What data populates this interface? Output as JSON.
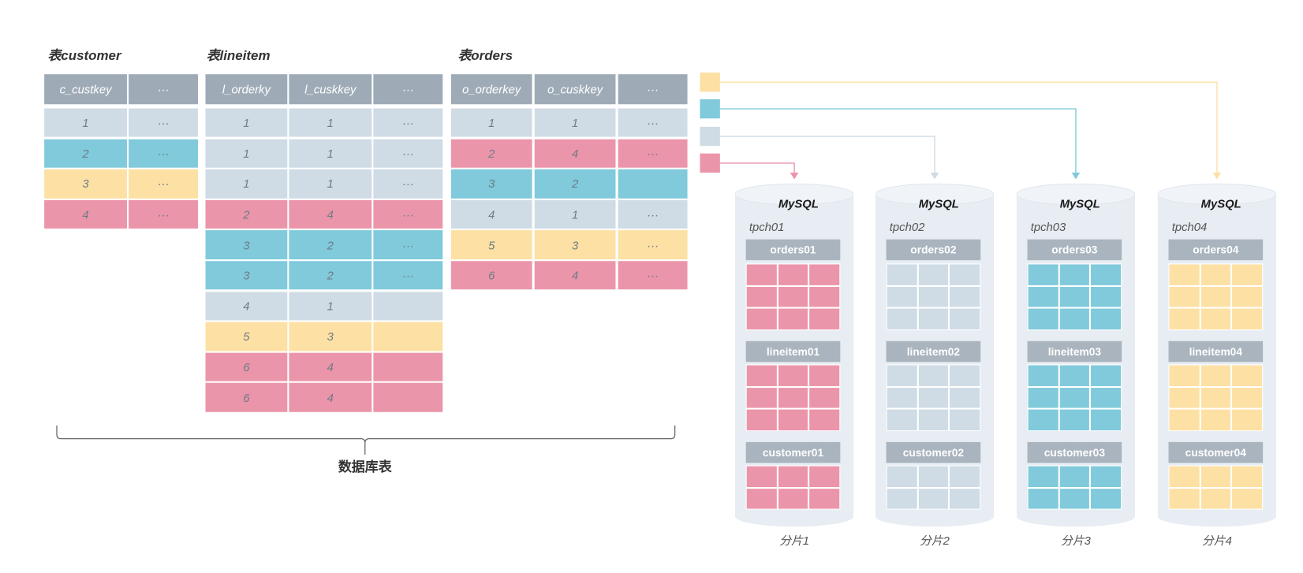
{
  "colors": {
    "table_header": "#9eabb7",
    "block_header": "#a9b4be",
    "cylinder": "#e7edf3",
    "cylinder_top": "#f0f4f8",
    "brace": "#666666"
  },
  "tables": [
    {
      "title": "表customer",
      "headers": [
        "c_custkey",
        "···"
      ],
      "rows": [
        {
          "color": "#cfdbe5",
          "cells": [
            "1",
            "···"
          ]
        },
        {
          "color": "#80cadb",
          "cells": [
            "2",
            "···"
          ]
        },
        {
          "color": "#fde0a4",
          "cells": [
            "3",
            "···"
          ]
        },
        {
          "color": "#eb95aa",
          "cells": [
            "4",
            "···"
          ]
        }
      ]
    },
    {
      "title": "表lineitem",
      "headers": [
        "l_orderky",
        "l_cuskkey",
        "···"
      ],
      "rows": [
        {
          "color": "#cfdbe5",
          "cells": [
            "1",
            "1",
            "···"
          ]
        },
        {
          "color": "#cfdbe5",
          "cells": [
            "1",
            "1",
            "···"
          ]
        },
        {
          "color": "#cfdbe5",
          "cells": [
            "1",
            "1",
            "···"
          ]
        },
        {
          "color": "#eb95aa",
          "cells": [
            "2",
            "4",
            "···"
          ]
        },
        {
          "color": "#80cadb",
          "cells": [
            "3",
            "2",
            "···"
          ]
        },
        {
          "color": "#80cadb",
          "cells": [
            "3",
            "2",
            "···"
          ]
        },
        {
          "color": "#cfdbe5",
          "cells": [
            "4",
            "1",
            ""
          ]
        },
        {
          "color": "#fde0a4",
          "cells": [
            "5",
            "3",
            ""
          ]
        },
        {
          "color": "#eb95aa",
          "cells": [
            "6",
            "4",
            ""
          ]
        },
        {
          "color": "#eb95aa",
          "cells": [
            "6",
            "4",
            ""
          ]
        }
      ]
    },
    {
      "title": "表orders",
      "headers": [
        "o_orderkey",
        "o_cuskkey",
        "···"
      ],
      "rows": [
        {
          "color": "#cfdbe5",
          "cells": [
            "1",
            "1",
            "···"
          ]
        },
        {
          "color": "#eb95aa",
          "cells": [
            "2",
            "4",
            "···"
          ]
        },
        {
          "color": "#80cadb",
          "cells": [
            "3",
            "2",
            ""
          ]
        },
        {
          "color": "#cfdbe5",
          "cells": [
            "4",
            "1",
            "···"
          ]
        },
        {
          "color": "#fde0a4",
          "cells": [
            "5",
            "3",
            "···"
          ]
        },
        {
          "color": "#eb95aa",
          "cells": [
            "6",
            "4",
            "···"
          ]
        }
      ]
    }
  ],
  "brace_label": "数据库表",
  "legend": [
    "#fde0a4",
    "#80cadb",
    "#cfdbe5",
    "#eb95aa"
  ],
  "shards": [
    {
      "color": "#eb95aa",
      "engine": "MySQL",
      "database": "tpch01",
      "tables": [
        "orders01",
        "lineitem01",
        "customer01"
      ],
      "label": "分片1"
    },
    {
      "color": "#cfdbe5",
      "engine": "MySQL",
      "database": "tpch02",
      "tables": [
        "orders02",
        "lineitem02",
        "customer02"
      ],
      "label": "分片2"
    },
    {
      "color": "#80cadb",
      "engine": "MySQL",
      "database": "tpch03",
      "tables": [
        "orders03",
        "lineitem03",
        "customer03"
      ],
      "label": "分片3"
    },
    {
      "color": "#fde0a4",
      "engine": "MySQL",
      "database": "tpch04",
      "tables": [
        "orders04",
        "lineitem04",
        "customer04"
      ],
      "label": "分片4"
    }
  ]
}
